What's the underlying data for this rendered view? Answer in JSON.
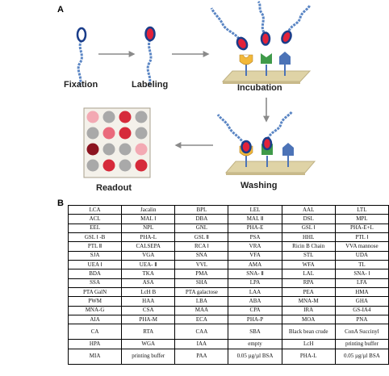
{
  "panel_a": {
    "label": "A",
    "steps": {
      "fixation": "Fixation",
      "labeling": "Labeling",
      "incubation": "Incubation",
      "washing": "Washing",
      "readout": "Readout"
    },
    "colors": {
      "bacteria_fill": "#e2223a",
      "bacteria_outline": "#1a3d8a",
      "fiber": "#5b86c4",
      "slide": "#dfd3a6",
      "lectin_yellow": "#f2b83a",
      "lectin_green": "#3f9a4a",
      "lectin_blue": "#4c73b7",
      "arrow": "#8a8a8a"
    },
    "readout_grid": [
      [
        "#f3a9b3",
        "#a9a9a9",
        "#d62a3a",
        "#a9a9a9"
      ],
      [
        "#a9a9a9",
        "#ea6a7c",
        "#d62a3a",
        "#a9a9a9"
      ],
      [
        "#8c1420",
        "#a9a9a9",
        "#a9a9a9",
        "#f3a9b3"
      ],
      [
        "#a9a9a9",
        "#d62a3a",
        "#a9a9a9",
        "#d62a3a"
      ]
    ]
  },
  "panel_b": {
    "label": "B",
    "rows": [
      [
        "LCA",
        "Jacalin",
        "BPL",
        "LEL",
        "AAL",
        "LTL"
      ],
      [
        "ACL",
        "MAL Ⅰ",
        "DBA",
        "MAL Ⅱ",
        "DSL",
        "MPL"
      ],
      [
        "EEL",
        "NPL",
        "GNL",
        "PHA-E",
        "GSL Ⅰ",
        "PHA-E+L"
      ],
      [
        "GSL Ⅰ -B",
        "PHA-L",
        "GSL Ⅱ",
        "PSA",
        "HHL",
        "PTL Ⅰ"
      ],
      [
        "PTL Ⅱ",
        "CALSEPA",
        "RCA Ⅰ",
        "VRA",
        "Ricin B Chain",
        "VVA mannose"
      ],
      [
        "SJA",
        "VGA",
        "SNA",
        "VFA",
        "STL",
        "UDA"
      ],
      [
        "UEA Ⅰ",
        "UEA- Ⅱ",
        "VVL",
        "AMA",
        "WFA",
        "TL"
      ],
      [
        "BDA",
        "TKA",
        "PMA",
        "SNA- Ⅱ",
        "LAL",
        "SNA- Ⅰ"
      ],
      [
        "SSA",
        "ASA",
        "SHA",
        "LPA",
        "RPA",
        "LFA"
      ],
      [
        "PTA GalN",
        "LcH B",
        "PTA galactose",
        "LAA",
        "PEA",
        "HMA"
      ],
      [
        "PWM",
        "HAA",
        "LBA",
        "ABA",
        "MNA-M",
        "GHA"
      ],
      [
        "MNA-G",
        "CSA",
        "MAA",
        "CPA",
        "IRA",
        "GS-IA4"
      ],
      [
        "AIA",
        "PHA-M",
        "ECA",
        "PHA-P",
        "MOA",
        "PNA"
      ],
      [
        "CA",
        "RTA",
        "CAA",
        "SBA",
        "Black bean crude",
        "ConA Succinyl"
      ],
      [
        "HPA",
        "WGA",
        "IAA",
        "empty",
        "LcH",
        "printing buffer"
      ],
      [
        "MIA",
        "printing buffer",
        "PAA",
        "0.05 µg/µl BSA",
        "PHA-L",
        "0.05 µg/µl BSA"
      ]
    ]
  }
}
